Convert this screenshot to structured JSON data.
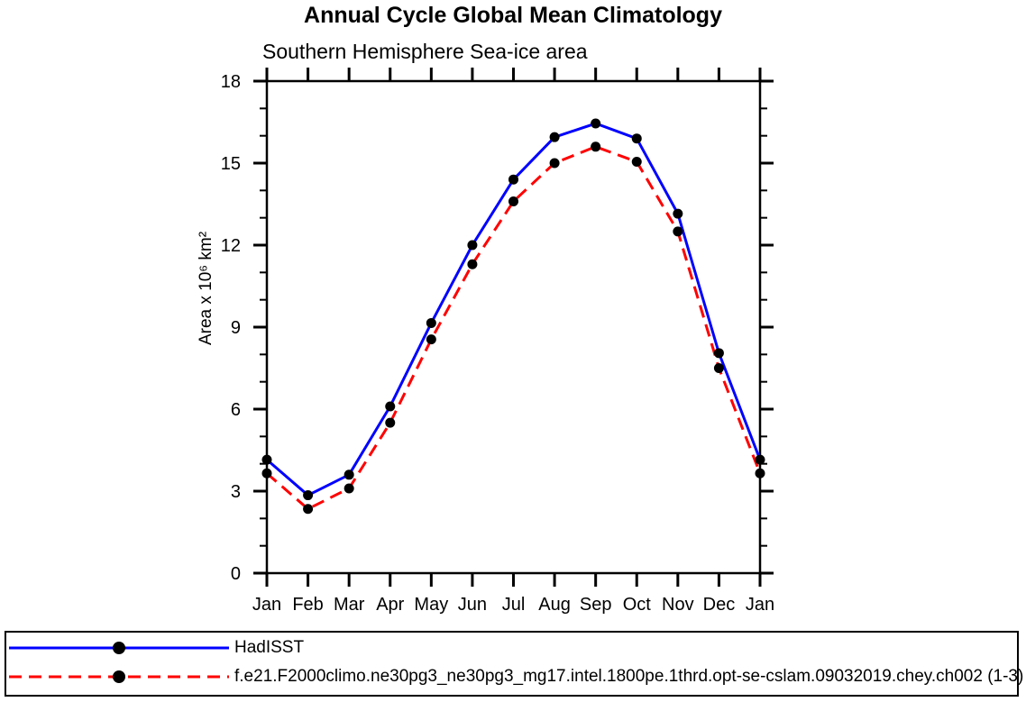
{
  "page": {
    "title": "Annual Cycle Global Mean Climatology",
    "subtitle": "Southern Hemisphere Sea-ice area"
  },
  "colors": {
    "axis": "#000000",
    "marker": "#000000",
    "hadisst_line": "#0000ff",
    "model_line": "#ff0000",
    "background": "#ffffff"
  },
  "legend": {
    "position": "bottom",
    "entries": [
      {
        "label": "HadISST",
        "color": "#0000ff",
        "style": "solid",
        "marker": "filled-circle"
      },
      {
        "label": "f.e21.F2000climo.ne30pg3_ne30pg3_mg17.intel.1800pe.1thrd.opt-se-cslam.09032019.chey.ch002 (1-3)",
        "color": "#ff0000",
        "style": "dashed",
        "marker": "filled-circle"
      }
    ]
  },
  "chart_data": {
    "type": "line",
    "title": "Annual Cycle Global Mean Climatology",
    "subtitle": "Southern Hemisphere Sea-ice area",
    "xlabel": "",
    "ylabel": "Area x 10⁶ km²",
    "categories": [
      "Jan",
      "Feb",
      "Mar",
      "Apr",
      "May",
      "Jun",
      "Jul",
      "Aug",
      "Sep",
      "Oct",
      "Nov",
      "Dec",
      "Jan"
    ],
    "ylim": [
      0,
      18
    ],
    "ytick_major": [
      0,
      3,
      6,
      9,
      12,
      15,
      18
    ],
    "ytick_minor_step": 1,
    "grid": false,
    "legend_position": "bottom",
    "series": [
      {
        "name": "HadISST",
        "color": "#0000ff",
        "line": "solid",
        "marker": "circle",
        "marker_color": "#000000",
        "values": [
          4.15,
          2.85,
          3.6,
          6.1,
          9.15,
          12.0,
          14.4,
          15.95,
          16.45,
          15.9,
          13.15,
          8.05,
          4.15
        ]
      },
      {
        "name": "f.e21.F2000climo.ne30pg3_ne30pg3_mg17.intel.1800pe.1thrd.opt-se-cslam.09032019.chey.ch002 (1-3)",
        "color": "#ff0000",
        "line": "dashed",
        "marker": "circle",
        "marker_color": "#000000",
        "values": [
          3.65,
          2.35,
          3.1,
          5.5,
          8.55,
          11.3,
          13.6,
          15.0,
          15.6,
          15.05,
          12.5,
          7.5,
          3.65
        ]
      }
    ]
  }
}
